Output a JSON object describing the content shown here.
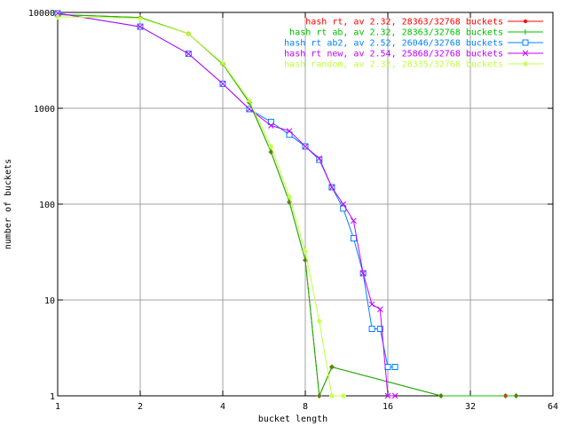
{
  "chart_data": {
    "type": "line",
    "title": "",
    "xlabel": "bucket length",
    "ylabel": "number of buckets",
    "xscale": "log2",
    "yscale": "log10",
    "xlim": [
      1,
      64
    ],
    "ylim": [
      1,
      10000
    ],
    "x_ticks": [
      1,
      2,
      4,
      8,
      16,
      32,
      64
    ],
    "y_ticks": [
      1,
      10,
      100,
      1000,
      10000
    ],
    "x_tick_labels": [
      "1",
      "2",
      "4",
      "8",
      "16",
      "32",
      "64"
    ],
    "y_tick_labels": [
      "1",
      "10",
      "100",
      "1000",
      "10000"
    ],
    "grid": true,
    "legend_position": "top-right",
    "series": [
      {
        "name": "hash rt, av 2.32, 28363/32768 buckets",
        "color": "#ff0000",
        "marker": "dot",
        "points": [
          [
            1,
            9500
          ],
          [
            2,
            8850
          ],
          [
            3,
            6000
          ],
          [
            4,
            2900
          ],
          [
            5,
            1150
          ],
          [
            6,
            350
          ],
          [
            7,
            105
          ],
          [
            8,
            26
          ],
          [
            9,
            1
          ],
          [
            10,
            2
          ],
          [
            25,
            1
          ],
          [
            43,
            1
          ],
          [
            47,
            1
          ]
        ]
      },
      {
        "name": "hash rt ab, av 2.32, 28363/32768 buckets",
        "color": "#00c000",
        "marker": "plus",
        "points": [
          [
            1,
            9500
          ],
          [
            2,
            8850
          ],
          [
            3,
            6000
          ],
          [
            4,
            2900
          ],
          [
            5,
            1150
          ],
          [
            6,
            350
          ],
          [
            7,
            105
          ],
          [
            8,
            26
          ],
          [
            9,
            1
          ],
          [
            10,
            2
          ],
          [
            25,
            1
          ],
          [
            43,
            1
          ],
          [
            47,
            1
          ]
        ]
      },
      {
        "name": "hash rt ab2, av 2.52, 26046/32768 buckets",
        "color": "#0080ff",
        "marker": "square",
        "points": [
          [
            1,
            9800
          ],
          [
            2,
            7100
          ],
          [
            3,
            3700
          ],
          [
            4,
            1800
          ],
          [
            5,
            980
          ],
          [
            6,
            720
          ],
          [
            7,
            530
          ],
          [
            8,
            400
          ],
          [
            9,
            290
          ],
          [
            10,
            150
          ],
          [
            11,
            90
          ],
          [
            12,
            44
          ],
          [
            13,
            19
          ],
          [
            14,
            5
          ],
          [
            15,
            5
          ],
          [
            16,
            2
          ],
          [
            17,
            2
          ]
        ]
      },
      {
        "name": "hash rt new, av 2.54, 25868/32768 buckets",
        "color": "#c000ff",
        "marker": "cross",
        "points": [
          [
            1,
            9800
          ],
          [
            2,
            7100
          ],
          [
            3,
            3700
          ],
          [
            4,
            1800
          ],
          [
            5,
            980
          ],
          [
            6,
            660
          ],
          [
            7,
            580
          ],
          [
            8,
            400
          ],
          [
            9,
            300
          ],
          [
            10,
            150
          ],
          [
            11,
            100
          ],
          [
            12,
            67
          ],
          [
            13,
            19
          ],
          [
            14,
            9
          ],
          [
            15,
            8
          ],
          [
            16,
            1
          ],
          [
            17,
            1
          ]
        ]
      },
      {
        "name": "hash random, av 2.32, 28335/32768 buckets",
        "color": "#c0ff40",
        "marker": "star",
        "points": [
          [
            1,
            9000
          ],
          [
            2,
            8700
          ],
          [
            3,
            6000
          ],
          [
            4,
            2950
          ],
          [
            5,
            1200
          ],
          [
            6,
            400
          ],
          [
            7,
            120
          ],
          [
            8,
            32
          ],
          [
            9,
            6
          ],
          [
            10,
            1
          ],
          [
            11,
            1
          ]
        ]
      }
    ]
  }
}
